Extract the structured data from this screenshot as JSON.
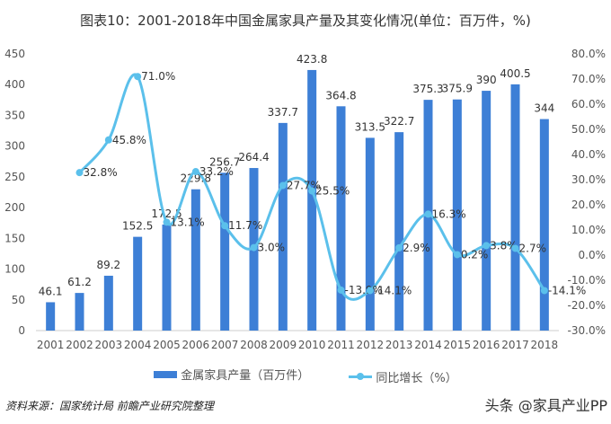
{
  "chart_data": {
    "type": "bar+line",
    "title": "图表10：2001-2018年中国金属家具产量及其变化情况(单位：百万件，%)",
    "categories": [
      "2001",
      "2002",
      "2003",
      "2004",
      "2005",
      "2006",
      "2007",
      "2008",
      "2009",
      "2010",
      "2011",
      "2012",
      "2013",
      "2014",
      "2015",
      "2016",
      "2017",
      "2018"
    ],
    "series": [
      {
        "name": "金属家具产量（百万件）",
        "type": "bar",
        "axis": "left",
        "color": "#3d7fd6",
        "values": [
          46.1,
          61.2,
          89.2,
          152.5,
          172.5,
          229.8,
          256.7,
          264.4,
          337.7,
          423.8,
          364.8,
          313.5,
          322.7,
          375.3,
          375.9,
          390,
          400.5,
          344
        ]
      },
      {
        "name": "同比增长（%）",
        "type": "line",
        "axis": "right",
        "color": "#5bc0eb",
        "smooth": true,
        "values": [
          null,
          32.8,
          45.8,
          71.0,
          13.1,
          33.2,
          11.7,
          3.0,
          27.7,
          25.5,
          -13.9,
          -14.1,
          2.9,
          16.3,
          0.2,
          3.8,
          2.7,
          -14.1
        ]
      }
    ],
    "left_axis": {
      "min": 0,
      "max": 450,
      "step": 50,
      "ticks": [
        "0",
        "50",
        "100",
        "150",
        "200",
        "250",
        "300",
        "350",
        "400",
        "450"
      ]
    },
    "right_axis": {
      "min": -30,
      "max": 80,
      "step": 10,
      "ticks": [
        "-30.0%",
        "-20.0%",
        "-10.0%",
        "0.0%",
        "10.0%",
        "20.0%",
        "30.0%",
        "40.0%",
        "50.0%",
        "60.0%",
        "70.0%",
        "80.0%"
      ]
    },
    "grid": false,
    "legend": "bottom"
  },
  "source": "资料来源：国家统计局 前瞻产业研究院整理",
  "watermark": "头条 @家具产业PP"
}
